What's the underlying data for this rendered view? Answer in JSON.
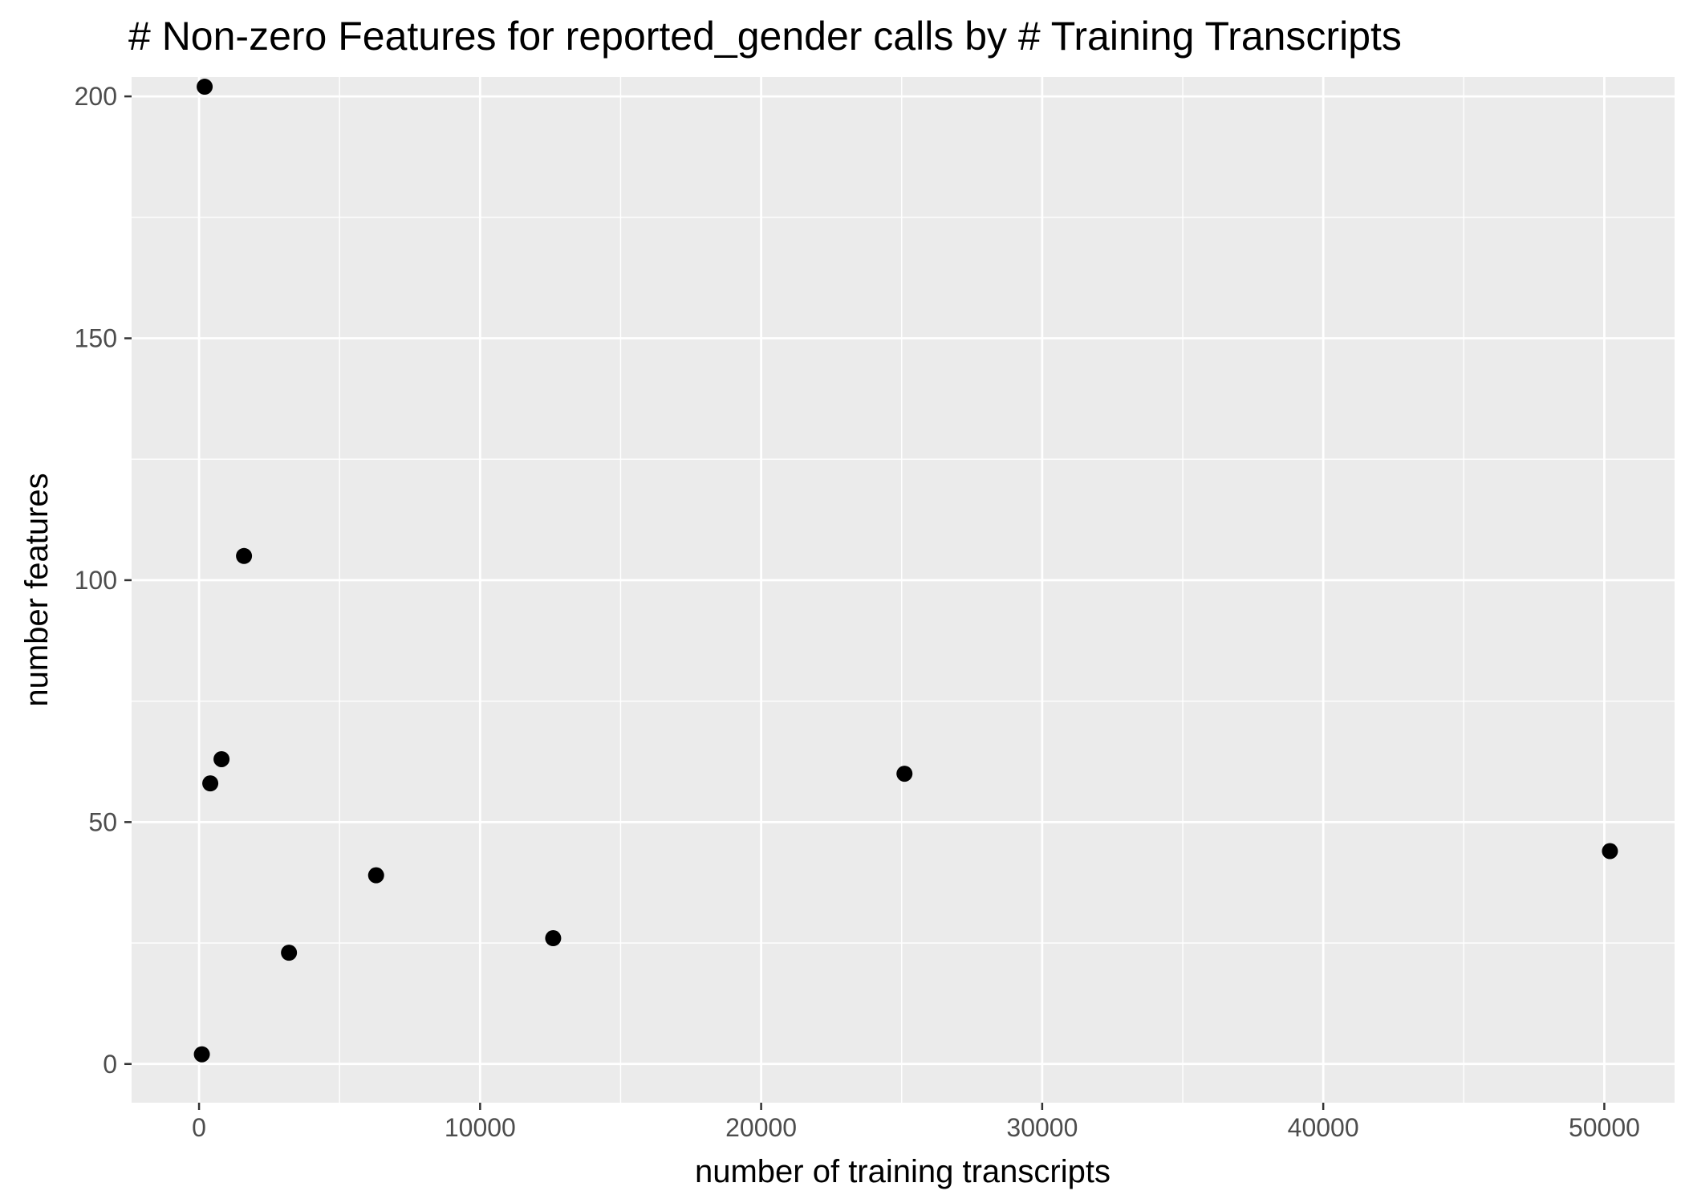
{
  "chart_data": {
    "type": "scatter",
    "title": "# Non-zero Features for reported_gender calls by # Training Transcripts",
    "xlabel": "number of training transcripts",
    "ylabel": "number features",
    "xlim": [
      -2400,
      52500
    ],
    "ylim": [
      -8,
      204
    ],
    "x_ticks": [
      0,
      10000,
      20000,
      30000,
      40000,
      50000
    ],
    "x_tick_labels": [
      "0",
      "10000",
      "20000",
      "30000",
      "40000",
      "50000"
    ],
    "x_minor_ticks": [
      5000,
      15000,
      25000,
      35000,
      45000
    ],
    "y_ticks": [
      0,
      50,
      100,
      150,
      200
    ],
    "y_tick_labels": [
      "0",
      "50",
      "100",
      "150",
      "200"
    ],
    "y_minor_ticks": [
      25,
      75,
      125,
      175
    ],
    "grid": true,
    "legend": "none",
    "colors": {
      "panel_background": "#ebebeb",
      "grid_line": "#ffffff",
      "point": "#000000",
      "tick_label": "#4d4d4d",
      "axis_tick": "#333333"
    },
    "series": [
      {
        "points": [
          {
            "x": 100,
            "y": 2
          },
          {
            "x": 200,
            "y": 202
          },
          {
            "x": 400,
            "y": 58
          },
          {
            "x": 800,
            "y": 63
          },
          {
            "x": 1600,
            "y": 105
          },
          {
            "x": 3200,
            "y": 23
          },
          {
            "x": 6300,
            "y": 39
          },
          {
            "x": 12600,
            "y": 26
          },
          {
            "x": 25100,
            "y": 60
          },
          {
            "x": 50200,
            "y": 44
          }
        ]
      }
    ]
  }
}
